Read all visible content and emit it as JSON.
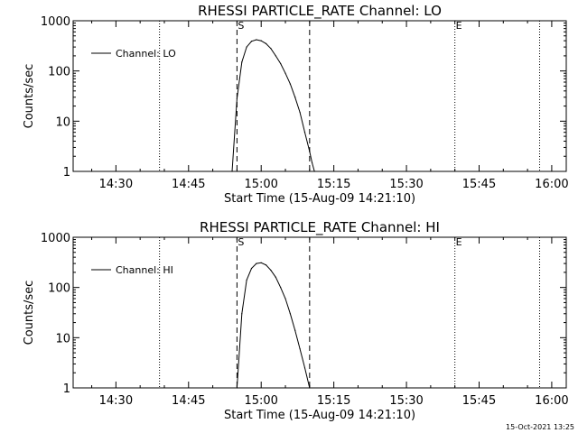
{
  "timestamp": "15-Oct-2021 13:25",
  "chart_data": [
    {
      "type": "line",
      "title": "RHESSI PARTICLE_RATE Channel: LO",
      "xlabel": "Start Time (15-Aug-09 14:21:10)",
      "ylabel": "Counts/sec",
      "x_ticks": [
        "14:30",
        "14:45",
        "15:00",
        "15:15",
        "15:30",
        "15:45",
        "16:00"
      ],
      "y_ticks": [
        "1",
        "10",
        "100",
        "1000"
      ],
      "y_scale": "log",
      "xlim": [
        "14:21:10",
        "16:03:00"
      ],
      "ylim": [
        1,
        1000
      ],
      "legend": {
        "label": "Channel: LO",
        "position": "top-left"
      },
      "markers": {
        "start": "S",
        "end": "E"
      },
      "dotted_lines_x": [
        "14:39",
        "15:40",
        "15:57:30"
      ],
      "dashed_lines_x": [
        "14:55",
        "15:10"
      ],
      "series": [
        {
          "name": "Channel: LO",
          "x": [
            "14:54",
            "14:55",
            "14:56",
            "14:57",
            "14:58",
            "14:59",
            "15:00",
            "15:01",
            "15:02",
            "15:03",
            "15:04",
            "15:05",
            "15:06",
            "15:07",
            "15:08",
            "15:09",
            "15:10",
            "15:10:30",
            "15:11"
          ],
          "y": [
            1,
            28,
            150,
            300,
            390,
            420,
            400,
            350,
            280,
            200,
            140,
            90,
            55,
            30,
            15,
            6,
            2.5,
            1.5,
            1
          ]
        }
      ]
    },
    {
      "type": "line",
      "title": "RHESSI PARTICLE_RATE Channel: HI",
      "xlabel": "Start Time (15-Aug-09 14:21:10)",
      "ylabel": "Counts/sec",
      "x_ticks": [
        "14:30",
        "14:45",
        "15:00",
        "15:15",
        "15:30",
        "15:45",
        "16:00"
      ],
      "y_ticks": [
        "1",
        "10",
        "100",
        "1000"
      ],
      "y_scale": "log",
      "xlim": [
        "14:21:10",
        "16:03:00"
      ],
      "ylim": [
        1,
        1000
      ],
      "legend": {
        "label": "Channel: HI",
        "position": "top-left"
      },
      "markers": {
        "start": "S",
        "end": "E"
      },
      "dotted_lines_x": [
        "14:39",
        "15:40",
        "15:57:30"
      ],
      "dashed_lines_x": [
        "14:55",
        "15:10"
      ],
      "series": [
        {
          "name": "Channel: HI",
          "x": [
            "14:55",
            "14:56",
            "14:57",
            "14:58",
            "14:59",
            "15:00",
            "15:01",
            "15:02",
            "15:03",
            "15:04",
            "15:05",
            "15:06",
            "15:07",
            "15:08",
            "15:09",
            "15:10"
          ],
          "y": [
            1,
            30,
            140,
            240,
            300,
            310,
            280,
            220,
            160,
            100,
            60,
            30,
            14,
            6,
            2.5,
            1
          ]
        }
      ]
    }
  ]
}
